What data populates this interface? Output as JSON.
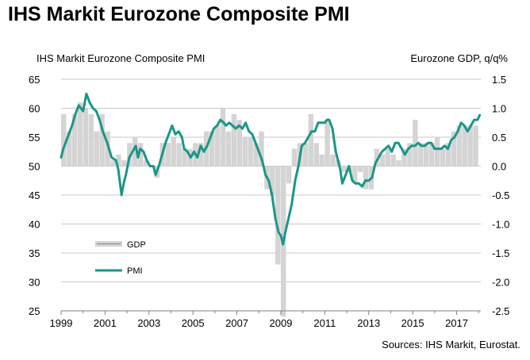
{
  "title": "IHS Markit Eurozone Composite PMI",
  "source": "Sources: IHS Markit, Eurostat.",
  "colors": {
    "gdp_bar": "#d4d4d4",
    "pmi_line": "#1a9688",
    "grid": "#c8c8c8",
    "axis": "#7f7f7f"
  },
  "chart_data": {
    "type": "bar",
    "title": "",
    "left_axis_label": "IHS Markit Eurozone Composite PMI",
    "right_axis_label": "Eurozone GDP, q/q%",
    "ylim": [
      25,
      65
    ],
    "y_ticks": [
      25,
      30,
      35,
      40,
      45,
      50,
      55,
      60,
      65
    ],
    "y2lim": [
      -2.5,
      1.5
    ],
    "y2_ticks": [
      -2.5,
      -2.0,
      -1.5,
      -1.0,
      -0.5,
      0.0,
      0.5,
      1.0,
      1.5
    ],
    "xlim": [
      1999,
      2018.1
    ],
    "x_ticks": [
      "1999",
      "2001",
      "2003",
      "2005",
      "2007",
      "2009",
      "2011",
      "2013",
      "2015",
      "2017"
    ],
    "grid": true,
    "legend": {
      "position": "lower-left",
      "items": [
        "GDP",
        "PMI"
      ]
    },
    "series": [
      {
        "name": "GDP",
        "type": "bar",
        "axis": "right",
        "x": [
          1999.0,
          1999.25,
          1999.5,
          1999.75,
          2000.0,
          2000.25,
          2000.5,
          2000.75,
          2001.0,
          2001.25,
          2001.5,
          2001.75,
          2002.0,
          2002.25,
          2002.5,
          2002.75,
          2003.0,
          2003.25,
          2003.5,
          2003.75,
          2004.0,
          2004.25,
          2004.5,
          2004.75,
          2005.0,
          2005.25,
          2005.5,
          2005.75,
          2006.0,
          2006.25,
          2006.5,
          2006.75,
          2007.0,
          2007.25,
          2007.5,
          2007.75,
          2008.0,
          2008.25,
          2008.5,
          2008.75,
          2009.0,
          2009.25,
          2009.5,
          2009.75,
          2010.0,
          2010.25,
          2010.5,
          2010.75,
          2011.0,
          2011.25,
          2011.5,
          2011.75,
          2012.0,
          2012.25,
          2012.5,
          2012.75,
          2013.0,
          2013.25,
          2013.5,
          2013.75,
          2014.0,
          2014.25,
          2014.5,
          2014.75,
          2015.0,
          2015.25,
          2015.5,
          2015.75,
          2016.0,
          2016.25,
          2016.5,
          2016.75,
          2017.0,
          2017.25,
          2017.5,
          2017.75
        ],
        "values": [
          0.9,
          0.6,
          0.9,
          1.1,
          1.0,
          0.9,
          0.6,
          0.9,
          0.6,
          0.1,
          0.2,
          0.1,
          0.4,
          0.5,
          0.4,
          0.1,
          0.0,
          -0.2,
          0.4,
          0.4,
          0.5,
          0.4,
          0.3,
          0.3,
          0.4,
          0.4,
          0.6,
          0.6,
          0.7,
          1.0,
          0.6,
          0.9,
          0.8,
          0.5,
          0.5,
          0.4,
          0.6,
          -0.4,
          -0.5,
          -1.7,
          -2.6,
          -0.3,
          0.3,
          0.4,
          0.4,
          0.9,
          0.4,
          0.2,
          0.8,
          0.2,
          0.1,
          -0.1,
          -0.1,
          -0.3,
          -0.1,
          -0.4,
          -0.4,
          0.3,
          0.2,
          0.3,
          0.2,
          0.1,
          0.3,
          0.4,
          0.8,
          0.4,
          0.4,
          0.4,
          0.5,
          0.3,
          0.4,
          0.6,
          0.7,
          0.7,
          0.7,
          0.7
        ]
      },
      {
        "name": "PMI",
        "type": "line",
        "axis": "left",
        "x": [
          1999.0,
          1999.1,
          1999.3,
          1999.5,
          1999.65,
          1999.8,
          2000.0,
          2000.15,
          2000.3,
          2000.45,
          2000.6,
          2000.75,
          2000.9,
          2001.1,
          2001.3,
          2001.5,
          2001.6,
          2001.75,
          2001.85,
          2001.95,
          2002.1,
          2002.25,
          2002.4,
          2002.5,
          2002.6,
          2002.75,
          2002.9,
          2003.05,
          2003.2,
          2003.3,
          2003.45,
          2003.6,
          2003.75,
          2003.9,
          2004.05,
          2004.2,
          2004.35,
          2004.5,
          2004.6,
          2004.75,
          2004.9,
          2005.05,
          2005.2,
          2005.35,
          2005.5,
          2005.65,
          2005.8,
          2005.95,
          2006.1,
          2006.25,
          2006.4,
          2006.5,
          2006.65,
          2006.8,
          2006.95,
          2007.1,
          2007.25,
          2007.4,
          2007.55,
          2007.7,
          2007.85,
          2008.0,
          2008.15,
          2008.3,
          2008.45,
          2008.6,
          2008.75,
          2008.9,
          2009.0,
          2009.1,
          2009.2,
          2009.35,
          2009.5,
          2009.65,
          2009.8,
          2009.95,
          2010.1,
          2010.25,
          2010.4,
          2010.55,
          2010.7,
          2010.85,
          2011.0,
          2011.1,
          2011.2,
          2011.35,
          2011.5,
          2011.6,
          2011.7,
          2011.8,
          2011.95,
          2012.1,
          2012.25,
          2012.4,
          2012.55,
          2012.7,
          2012.85,
          2013.0,
          2013.15,
          2013.3,
          2013.45,
          2013.6,
          2013.75,
          2013.9,
          2014.05,
          2014.2,
          2014.35,
          2014.5,
          2014.65,
          2014.8,
          2014.95,
          2015.1,
          2015.25,
          2015.4,
          2015.55,
          2015.7,
          2015.85,
          2016.0,
          2016.15,
          2016.3,
          2016.45,
          2016.6,
          2016.75,
          2016.9,
          2017.05,
          2017.2,
          2017.35,
          2017.5,
          2017.65,
          2017.8,
          2017.95,
          2018.05
        ],
        "values": [
          51.5,
          53.0,
          55.0,
          57.0,
          59.0,
          60.5,
          59.5,
          62.5,
          61.0,
          60.0,
          59.5,
          58.0,
          56.0,
          54.0,
          51.5,
          51.0,
          49.5,
          45.0,
          47.0,
          48.5,
          51.5,
          52.5,
          53.5,
          51.5,
          53.0,
          52.5,
          51.0,
          50.0,
          50.0,
          48.5,
          50.0,
          52.0,
          54.0,
          55.5,
          57.0,
          55.5,
          56.0,
          55.0,
          53.0,
          52.5,
          51.5,
          52.5,
          51.5,
          53.5,
          52.5,
          53.5,
          55.0,
          56.5,
          57.0,
          58.0,
          57.5,
          57.0,
          57.5,
          57.0,
          56.5,
          57.0,
          56.5,
          57.5,
          56.0,
          55.5,
          54.0,
          52.5,
          51.0,
          48.5,
          47.5,
          45.0,
          41.0,
          38.5,
          38.0,
          36.5,
          38.5,
          41.0,
          43.5,
          47.5,
          50.0,
          53.5,
          54.0,
          55.0,
          56.0,
          56.0,
          57.5,
          57.5,
          57.5,
          58.0,
          58.0,
          56.5,
          52.5,
          51.0,
          49.5,
          47.0,
          48.5,
          50.0,
          47.5,
          47.0,
          47.0,
          46.5,
          47.5,
          47.5,
          48.0,
          50.5,
          51.5,
          52.5,
          53.0,
          53.5,
          52.5,
          54.0,
          54.0,
          53.0,
          52.0,
          53.0,
          53.5,
          53.5,
          54.0,
          53.5,
          53.5,
          54.0,
          54.0,
          53.0,
          53.0,
          53.0,
          53.5,
          53.0,
          54.5,
          55.0,
          56.0,
          57.5,
          57.0,
          56.0,
          57.0,
          58.0,
          58.0,
          58.8
        ]
      }
    ]
  }
}
